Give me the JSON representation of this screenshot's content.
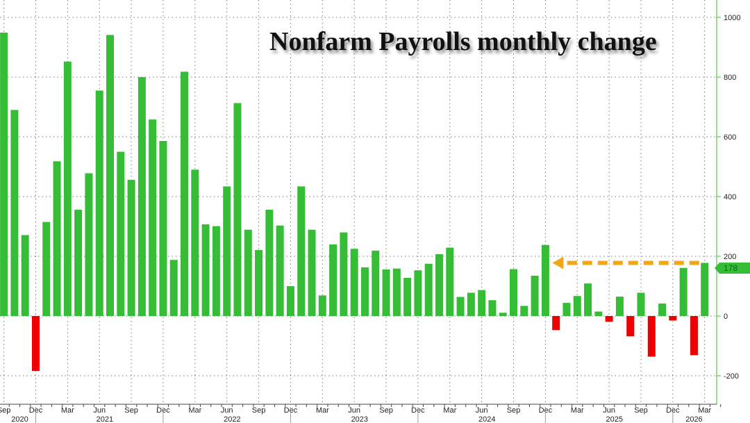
{
  "chart_data": {
    "type": "bar",
    "title": "Nonfarm Payrolls monthly change",
    "xlabel": "",
    "ylabel": "",
    "ylim": [
      -300,
      1050
    ],
    "yticks": [
      1000,
      800,
      600,
      400,
      200,
      0,
      -200
    ],
    "grid": true,
    "axis_position": "right",
    "start_month": "2020-09",
    "categories": [
      "Sep 2020",
      "Oct 2020",
      "Nov 2020",
      "Dec 2020",
      "Jan 2021",
      "Feb 2021",
      "Mar 2021",
      "Apr 2021",
      "May 2021",
      "Jun 2021",
      "Jul 2021",
      "Aug 2021",
      "Sep 2021",
      "Oct 2021",
      "Nov 2021",
      "Dec 2021",
      "Jan 2022",
      "Feb 2022",
      "Mar 2022",
      "Apr 2022",
      "May 2022",
      "Jun 2022",
      "Jul 2022",
      "Aug 2022",
      "Sep 2022",
      "Oct 2022",
      "Nov 2022",
      "Dec 2022",
      "Jan 2023",
      "Feb 2023",
      "Mar 2023",
      "Apr 2023",
      "May 2023",
      "Jun 2023",
      "Jul 2023",
      "Aug 2023",
      "Sep 2023",
      "Oct 2023",
      "Nov 2023",
      "Dec 2023",
      "Jan 2024",
      "Feb 2024",
      "Mar 2024",
      "Apr 2024",
      "May 2024",
      "Jun 2024",
      "Jul 2024",
      "Aug 2024",
      "Sep 2024",
      "Oct 2024",
      "Nov 2024",
      "Dec 2024",
      "Jan 2025",
      "Feb 2025",
      "Mar 2025",
      "Apr 2025",
      "May 2025",
      "Jun 2025",
      "Jul 2025",
      "Aug 2025",
      "Sep 2025",
      "Oct 2025",
      "Nov 2025",
      "Dec 2025",
      "Jan 2026",
      "Feb 2026",
      "Mar 2026"
    ],
    "values": [
      949,
      690,
      271,
      -184,
      315,
      518,
      852,
      356,
      478,
      755,
      941,
      550,
      456,
      800,
      658,
      586,
      188,
      818,
      490,
      307,
      301,
      434,
      713,
      289,
      221,
      356,
      303,
      100,
      434,
      289,
      69,
      240,
      280,
      225,
      163,
      219,
      156,
      159,
      128,
      153,
      175,
      207,
      229,
      64,
      78,
      87,
      53,
      11,
      157,
      34,
      135,
      238,
      -47,
      44,
      67,
      109,
      15,
      -19,
      65,
      -68,
      78,
      -136,
      42,
      -15,
      161,
      -131,
      178
    ],
    "x_tick_labels": [
      {
        "month": "2020-09",
        "label": "Sep"
      },
      {
        "month": "2020-12",
        "label": "Dec"
      },
      {
        "month": "2021-03",
        "label": "Mar"
      },
      {
        "month": "2021-06",
        "label": "Jun"
      },
      {
        "month": "2021-09",
        "label": "Sep"
      },
      {
        "month": "2021-12",
        "label": "Dec"
      },
      {
        "month": "2022-03",
        "label": "Mar"
      },
      {
        "month": "2022-06",
        "label": "Jun"
      },
      {
        "month": "2022-09",
        "label": "Sep"
      },
      {
        "month": "2022-12",
        "label": "Dec"
      },
      {
        "month": "2023-03",
        "label": "Mar"
      },
      {
        "month": "2023-06",
        "label": "Jun"
      },
      {
        "month": "2023-09",
        "label": "Sep"
      },
      {
        "month": "2023-12",
        "label": "Dec"
      },
      {
        "month": "2024-03",
        "label": "Mar"
      },
      {
        "month": "2024-06",
        "label": "Jun"
      },
      {
        "month": "2024-09",
        "label": "Sep"
      },
      {
        "month": "2024-12",
        "label": "Dec"
      },
      {
        "month": "2025-03",
        "label": "Mar"
      },
      {
        "month": "2025-06",
        "label": "Jun"
      },
      {
        "month": "2025-09",
        "label": "Sep"
      },
      {
        "month": "2025-12",
        "label": "Dec"
      },
      {
        "month": "2026-03",
        "label": "Mar"
      }
    ],
    "year_labels": [
      "2020",
      "2021",
      "2022",
      "2023",
      "2024",
      "2025",
      "2026"
    ],
    "last_value_label": "178",
    "annotation": {
      "type": "dashed-arrow",
      "from": "Mar 2026",
      "to": "Dec 2024",
      "level": 178
    },
    "colors": {
      "positive": "#35bd35",
      "negative": "#ee0000",
      "arrow": "#f0a818",
      "axis": "#35bd35"
    }
  }
}
